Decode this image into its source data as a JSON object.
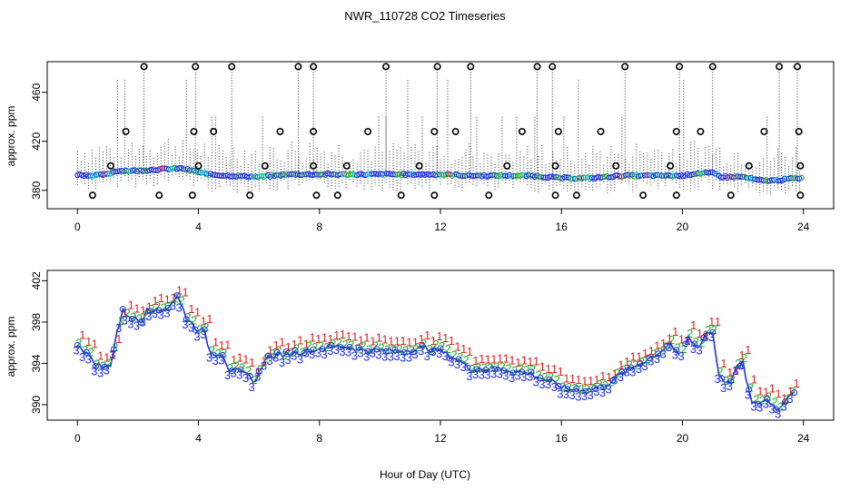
{
  "chart_data": [
    {
      "type": "scatter",
      "title": "NWR_110728  CO2 Timeseries",
      "xlabel": "",
      "ylabel": "approx. ppm",
      "xlim": [
        -1,
        25
      ],
      "ylim": [
        365,
        485
      ],
      "xticks": [
        0,
        4,
        8,
        12,
        16,
        20,
        24
      ],
      "yticks": [
        380,
        420,
        460
      ],
      "colors": {
        "main": "#2030e0",
        "alt": "#20b020",
        "cyan": "#00d0d0",
        "red": "#e02020",
        "outlier": "#000000"
      },
      "baseline_knots": [
        [
          0.0,
          393
        ],
        [
          0.5,
          392
        ],
        [
          1.0,
          393
        ],
        [
          1.3,
          396
        ],
        [
          2.0,
          396
        ],
        [
          2.6,
          397
        ],
        [
          3.4,
          398
        ],
        [
          3.8,
          396
        ],
        [
          4.3,
          393
        ],
        [
          5.0,
          392
        ],
        [
          6.0,
          391
        ],
        [
          7.0,
          393
        ],
        [
          8.0,
          393
        ],
        [
          9.0,
          393
        ],
        [
          10.0,
          393
        ],
        [
          11.0,
          393
        ],
        [
          12.0,
          393
        ],
        [
          13.0,
          392
        ],
        [
          14.0,
          392
        ],
        [
          15.0,
          392
        ],
        [
          16.0,
          390
        ],
        [
          17.0,
          390
        ],
        [
          18.0,
          392
        ],
        [
          19.0,
          392
        ],
        [
          20.0,
          392
        ],
        [
          20.5,
          394
        ],
        [
          21.0,
          394
        ],
        [
          21.3,
          391
        ],
        [
          22.0,
          391
        ],
        [
          22.5,
          388
        ],
        [
          23.0,
          388
        ],
        [
          23.8,
          390
        ]
      ],
      "outliers_top": [
        2.2,
        3.9,
        5.1,
        7.3,
        7.8,
        10.2,
        11.9,
        13.0,
        15.2,
        15.7,
        18.1,
        19.9,
        21.0,
        23.2,
        23.8
      ],
      "outliers_mid": [
        1.6,
        3.85,
        4.5,
        6.7,
        7.8,
        9.6,
        11.8,
        12.5,
        14.7,
        15.9,
        17.3,
        19.8,
        20.6,
        22.7,
        23.85
      ],
      "outliers_low": [
        1.1,
        4.0,
        6.2,
        7.8,
        8.9,
        11.3,
        14.2,
        15.8,
        17.8,
        19.6,
        22.2,
        23.9
      ],
      "outliers_bottom": [
        0.5,
        2.7,
        3.8,
        5.7,
        7.9,
        8.6,
        10.7,
        11.8,
        13.6,
        15.8,
        16.5,
        18.7,
        19.8,
        21.6,
        23.9
      ],
      "outlier_levels": [
        481,
        428,
        400,
        376
      ]
    },
    {
      "type": "line",
      "title": "",
      "xlabel": "Hour of Day (UTC)",
      "ylabel": "approx. ppm",
      "xlim": [
        -1,
        25
      ],
      "ylim": [
        388.5,
        403
      ],
      "xticks": [
        0,
        4,
        8,
        12,
        16,
        20,
        24
      ],
      "yticks": [
        390,
        394,
        398,
        402
      ],
      "legend_glyphs": [
        "1",
        "2",
        "3"
      ],
      "colors": {
        "1": "#e02020",
        "2": "#20b020",
        "3": "#2030e0",
        "line": "#2030e0",
        "cyan": "#00c0d0"
      },
      "series_knots": [
        [
          0.0,
          396
        ],
        [
          0.3,
          395
        ],
        [
          0.6,
          394
        ],
        [
          0.9,
          393.5
        ],
        [
          1.1,
          394
        ],
        [
          1.3,
          397
        ],
        [
          1.5,
          399
        ],
        [
          1.8,
          398.5
        ],
        [
          2.1,
          398
        ],
        [
          2.3,
          399.5
        ],
        [
          2.6,
          399
        ],
        [
          3.0,
          399.5
        ],
        [
          3.3,
          400.5
        ],
        [
          3.6,
          398.5
        ],
        [
          3.9,
          397.5
        ],
        [
          4.2,
          397
        ],
        [
          4.4,
          395
        ],
        [
          4.8,
          395
        ],
        [
          5.0,
          393.5
        ],
        [
          5.5,
          393
        ],
        [
          5.9,
          392.3
        ],
        [
          6.2,
          394.5
        ],
        [
          7.0,
          395
        ],
        [
          7.8,
          395.3
        ],
        [
          8.0,
          395.5
        ],
        [
          8.8,
          395.7
        ],
        [
          9.5,
          395.3
        ],
        [
          10.5,
          395.2
        ],
        [
          11.5,
          395.5
        ],
        [
          12.0,
          395.2
        ],
        [
          12.5,
          394.5
        ],
        [
          13.0,
          393.5
        ],
        [
          14.0,
          393.5
        ],
        [
          15.0,
          393
        ],
        [
          15.8,
          392
        ],
        [
          16.2,
          391.5
        ],
        [
          17.0,
          391.5
        ],
        [
          17.5,
          392
        ],
        [
          18.0,
          393
        ],
        [
          18.6,
          394
        ],
        [
          19.2,
          395
        ],
        [
          19.6,
          396
        ],
        [
          19.9,
          394.5
        ],
        [
          20.2,
          396.5
        ],
        [
          20.5,
          395.5
        ],
        [
          20.8,
          397
        ],
        [
          21.0,
          397
        ],
        [
          21.2,
          393
        ],
        [
          21.5,
          392
        ],
        [
          21.8,
          393.5
        ],
        [
          22.0,
          394
        ],
        [
          22.3,
          390
        ],
        [
          22.8,
          390.5
        ],
        [
          23.2,
          389.5
        ],
        [
          23.5,
          391
        ],
        [
          23.8,
          391.5
        ]
      ]
    }
  ]
}
